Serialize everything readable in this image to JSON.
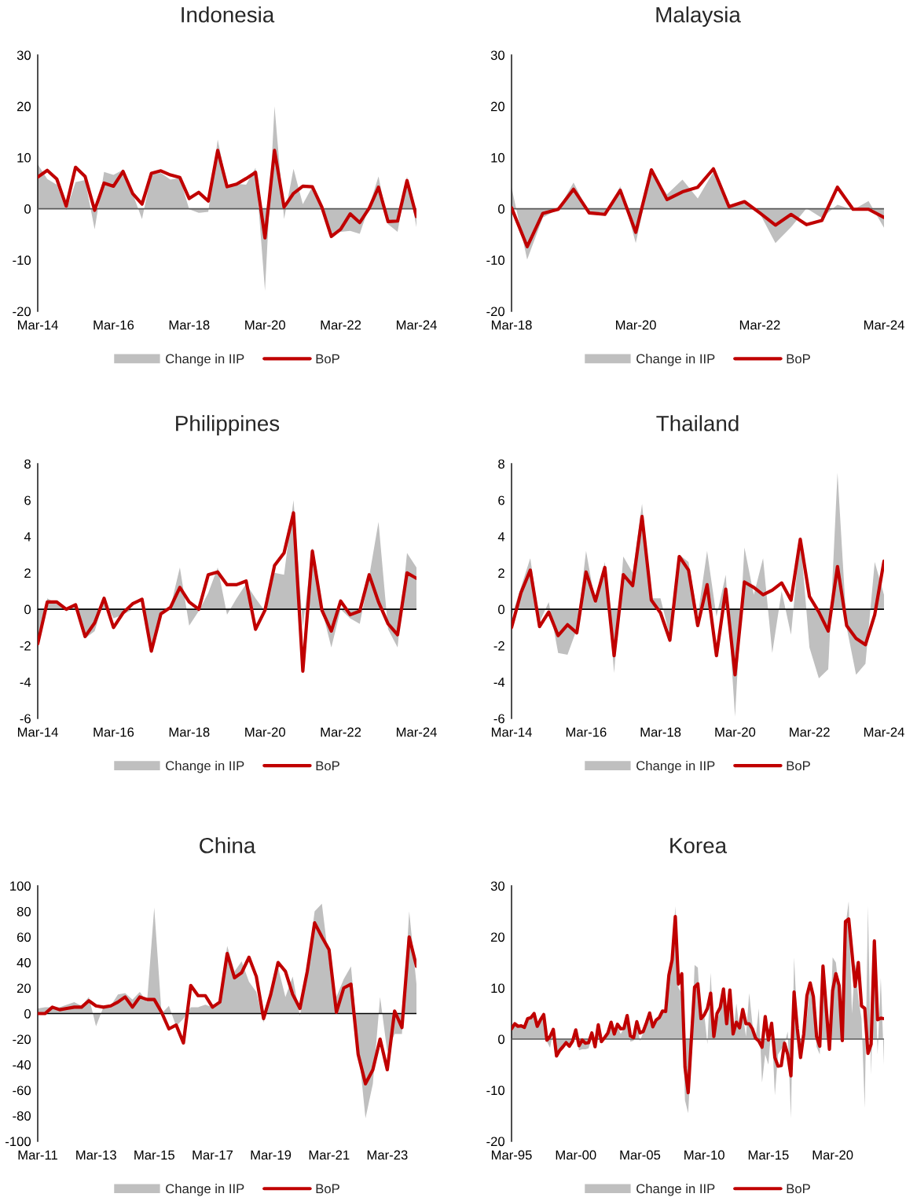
{
  "chart_data": [
    {
      "type": "area",
      "title": "Indonesia",
      "x": [
        "2014-03",
        "2014-06",
        "2014-09",
        "2014-12",
        "2015-03",
        "2015-06",
        "2015-09",
        "2015-12",
        "2016-03",
        "2016-06",
        "2016-09",
        "2016-12",
        "2017-03",
        "2017-06",
        "2017-09",
        "2017-12",
        "2018-03",
        "2018-06",
        "2018-09",
        "2018-12",
        "2019-03",
        "2019-06",
        "2019-09",
        "2019-12",
        "2020-03",
        "2020-06",
        "2020-09",
        "2020-12",
        "2021-03",
        "2021-06",
        "2021-09",
        "2021-12",
        "2022-03",
        "2022-06",
        "2022-09",
        "2022-12",
        "2023-03",
        "2023-06",
        "2023-09",
        "2023-12",
        "2024-03"
      ],
      "series": [
        {
          "name": "Change in IIP",
          "color": "#bfbfbf",
          "values": [
            8.7,
            5.8,
            4.7,
            -0.3,
            5.2,
            5.6,
            -4.0,
            7.2,
            6.6,
            7.6,
            3.0,
            -2.0,
            6.8,
            7.0,
            5.7,
            6.0,
            -0.1,
            -0.8,
            -0.6,
            13.5,
            4.5,
            4.9,
            4.7,
            8.0,
            -16.0,
            20.0,
            -2.0,
            7.8,
            0.9,
            4.3,
            0.3,
            -5.0,
            -4.5,
            -4.3,
            -4.9,
            0.5,
            6.3,
            -3.0,
            -4.5,
            6.3,
            -3.6
          ]
        },
        {
          "name": "BoP",
          "type": "line",
          "color": "#c00000",
          "values": [
            6.2,
            7.5,
            5.8,
            0.5,
            8.1,
            6.3,
            -0.3,
            5.0,
            4.4,
            7.3,
            3.0,
            0.9,
            6.9,
            7.4,
            6.6,
            6.1,
            2.0,
            3.2,
            1.5,
            11.4,
            4.3,
            4.8,
            5.9,
            7.1,
            -5.7,
            11.4,
            0.3,
            3.0,
            4.4,
            4.3,
            0.3,
            -5.4,
            -4.0,
            -1.0,
            -2.7,
            0.1,
            4.2,
            -2.5,
            -2.4,
            5.5,
            -1.5
          ]
        }
      ],
      "xlim": [
        "2014-03",
        "2024-03"
      ],
      "xticks": [
        {
          "value": "2014-03",
          "label": "Mar-14"
        },
        {
          "value": "2016-03",
          "label": "Mar-16"
        },
        {
          "value": "2018-03",
          "label": "Mar-18"
        },
        {
          "value": "2020-03",
          "label": "Mar-20"
        },
        {
          "value": "2022-03",
          "label": "Mar-22"
        },
        {
          "value": "2024-03",
          "label": "Mar-24"
        }
      ],
      "ylim": [
        -20,
        30
      ],
      "yticks": [
        -20,
        -10,
        0,
        10,
        20,
        30
      ],
      "ref_lines": [
        {
          "axis": "y",
          "value": 0,
          "color": "#595959"
        }
      ],
      "legend": "bottom",
      "grid": false
    },
    {
      "type": "area",
      "title": "Malaysia",
      "x": [
        "2018-03",
        "2018-06",
        "2018-09",
        "2018-12",
        "2019-03",
        "2019-06",
        "2019-09",
        "2019-12",
        "2020-03",
        "2020-06",
        "2020-09",
        "2020-12",
        "2021-03",
        "2021-06",
        "2021-09",
        "2021-12",
        "2022-03",
        "2022-06",
        "2022-09",
        "2022-12",
        "2023-03",
        "2023-06",
        "2023-09",
        "2023-12",
        "2024-03"
      ],
      "series": [
        {
          "name": "Change in IIP",
          "color": "#bfbfbf",
          "values": [
            4.2,
            -9.9,
            -1.7,
            -0.1,
            5.1,
            -0.9,
            -1.2,
            4.4,
            -6.7,
            7.2,
            2.8,
            5.7,
            2.0,
            7.2,
            0.4,
            1.3,
            -0.9,
            -6.7,
            -3.6,
            0.1,
            -1.8,
            0.8,
            -0.2,
            1.5,
            -3.7
          ]
        },
        {
          "name": "BoP",
          "type": "line",
          "color": "#c00000",
          "values": [
            0.2,
            -7.4,
            -0.9,
            -0.1,
            3.8,
            -0.8,
            -1.1,
            3.6,
            -4.6,
            7.6,
            1.8,
            3.3,
            4.2,
            7.8,
            0.4,
            1.4,
            -0.8,
            -3.2,
            -1.1,
            -3.1,
            -2.3,
            4.2,
            -0.1,
            -0.1,
            -1.7
          ]
        }
      ],
      "xlim": [
        "2018-03",
        "2024-03"
      ],
      "xticks": [
        {
          "value": "2018-03",
          "label": "Mar-18"
        },
        {
          "value": "2020-03",
          "label": "Mar-20"
        },
        {
          "value": "2022-03",
          "label": "Mar-22"
        },
        {
          "value": "2024-03",
          "label": "Mar-24"
        }
      ],
      "ylim": [
        -20,
        30
      ],
      "yticks": [
        -20,
        -10,
        0,
        10,
        20,
        30
      ],
      "ref_lines": [
        {
          "axis": "y",
          "value": 0,
          "color": "#595959"
        }
      ],
      "legend": "bottom",
      "grid": false
    },
    {
      "type": "area",
      "title": "Philippines",
      "x": [
        "2014-03",
        "2014-06",
        "2014-09",
        "2014-12",
        "2015-03",
        "2015-06",
        "2015-09",
        "2015-12",
        "2016-03",
        "2016-06",
        "2016-09",
        "2016-12",
        "2017-03",
        "2017-06",
        "2017-09",
        "2017-12",
        "2018-03",
        "2018-06",
        "2018-09",
        "2018-12",
        "2019-03",
        "2019-06",
        "2019-09",
        "2019-12",
        "2020-03",
        "2020-06",
        "2020-09",
        "2020-12",
        "2021-03",
        "2021-06",
        "2021-09",
        "2021-12",
        "2022-03",
        "2022-06",
        "2022-09",
        "2022-12",
        "2023-03",
        "2023-06",
        "2023-09",
        "2023-12",
        "2024-03"
      ],
      "series": [
        {
          "name": "Change in IIP",
          "color": "#bfbfbf",
          "values": [
            -2.2,
            0.6,
            0.3,
            -0.1,
            0.1,
            -1.6,
            -1.2,
            0.5,
            -0.5,
            -0.3,
            0.0,
            0.0,
            -2.2,
            -0.2,
            0.1,
            2.3,
            -0.9,
            -0.1,
            0.9,
            2.3,
            -0.3,
            0.6,
            1.4,
            0.6,
            -0.1,
            2.0,
            1.9,
            6.0,
            -1.0,
            3.4,
            0.0,
            -2.1,
            0.0,
            -0.5,
            -0.8,
            1.8,
            4.8,
            -1.1,
            -2.1,
            3.1,
            2.3
          ]
        },
        {
          "name": "BoP",
          "type": "line",
          "color": "#c00000",
          "values": [
            -1.9,
            0.4,
            0.4,
            0.0,
            0.25,
            -1.5,
            -0.75,
            0.6,
            -1.0,
            -0.2,
            0.3,
            0.55,
            -2.3,
            -0.25,
            0.1,
            1.2,
            0.4,
            0.0,
            1.9,
            2.05,
            1.35,
            1.35,
            1.55,
            -1.1,
            -0.05,
            2.4,
            3.1,
            5.3,
            -3.4,
            3.2,
            -0.05,
            -1.2,
            0.45,
            -0.3,
            -0.1,
            1.9,
            0.4,
            -0.8,
            -1.4,
            2.0,
            1.7
          ]
        }
      ],
      "xlim": [
        "2014-03",
        "2024-03"
      ],
      "xticks": [
        {
          "value": "2014-03",
          "label": "Mar-14"
        },
        {
          "value": "2016-03",
          "label": "Mar-16"
        },
        {
          "value": "2018-03",
          "label": "Mar-18"
        },
        {
          "value": "2020-03",
          "label": "Mar-20"
        },
        {
          "value": "2022-03",
          "label": "Mar-22"
        },
        {
          "value": "2024-03",
          "label": "Mar-24"
        }
      ],
      "ylim": [
        -6,
        8
      ],
      "yticks": [
        -6,
        -4,
        -2,
        0,
        2,
        4,
        6,
        8
      ],
      "ref_lines": [
        {
          "axis": "y",
          "value": 0,
          "color": "#000000"
        }
      ],
      "legend": "bottom",
      "grid": false
    },
    {
      "type": "area",
      "title": "Thailand",
      "x": [
        "2014-03",
        "2014-06",
        "2014-09",
        "2014-12",
        "2015-03",
        "2015-06",
        "2015-09",
        "2015-12",
        "2016-03",
        "2016-06",
        "2016-09",
        "2016-12",
        "2017-03",
        "2017-06",
        "2017-09",
        "2017-12",
        "2018-03",
        "2018-06",
        "2018-09",
        "2018-12",
        "2019-03",
        "2019-06",
        "2019-09",
        "2019-12",
        "2020-03",
        "2020-06",
        "2020-09",
        "2020-12",
        "2021-03",
        "2021-06",
        "2021-09",
        "2021-12",
        "2022-03",
        "2022-06",
        "2022-09",
        "2022-12",
        "2023-03",
        "2023-06",
        "2023-09",
        "2023-12",
        "2024-03"
      ],
      "series": [
        {
          "name": "Change in IIP",
          "color": "#bfbfbf",
          "values": [
            -0.4,
            1.2,
            2.8,
            -0.7,
            0.4,
            -2.4,
            -2.5,
            -1.1,
            3.2,
            0.3,
            2.6,
            -3.5,
            2.9,
            2.0,
            5.8,
            0.6,
            0.6,
            -1.5,
            3.0,
            2.6,
            -0.4,
            3.2,
            -0.4,
            1.9,
            -5.9,
            3.4,
            0.8,
            2.8,
            -2.4,
            1.0,
            -1.4,
            4.0,
            -2.1,
            -3.8,
            -3.3,
            7.5,
            -1.0,
            -3.6,
            -3.0,
            2.6,
            0.8
          ]
        },
        {
          "name": "BoP",
          "type": "line",
          "color": "#c00000",
          "values": [
            -1.0,
            0.9,
            2.15,
            -0.95,
            -0.15,
            -1.45,
            -0.85,
            -1.3,
            2.05,
            0.45,
            2.3,
            -2.55,
            1.9,
            1.3,
            5.1,
            0.5,
            -0.2,
            -1.7,
            2.9,
            2.15,
            -0.9,
            1.35,
            -2.55,
            1.1,
            -3.6,
            1.5,
            1.2,
            0.8,
            1.05,
            1.45,
            0.5,
            3.85,
            0.7,
            -0.15,
            -1.2,
            2.35,
            -0.9,
            -1.6,
            -1.95,
            -0.3,
            2.65
          ]
        }
      ],
      "xlim": [
        "2014-03",
        "2024-03"
      ],
      "xticks": [
        {
          "value": "2014-03",
          "label": "Mar-14"
        },
        {
          "value": "2016-03",
          "label": "Mar-16"
        },
        {
          "value": "2018-03",
          "label": "Mar-18"
        },
        {
          "value": "2020-03",
          "label": "Mar-20"
        },
        {
          "value": "2022-03",
          "label": "Mar-22"
        },
        {
          "value": "2024-03",
          "label": "Mar-24"
        }
      ],
      "ylim": [
        -6,
        8
      ],
      "yticks": [
        -6,
        -4,
        -2,
        0,
        2,
        4,
        6,
        8
      ],
      "ref_lines": [
        {
          "axis": "y",
          "value": 0,
          "color": "#000000"
        }
      ],
      "legend": "bottom",
      "grid": false
    },
    {
      "type": "area",
      "title": "China",
      "x": [
        "2011-03",
        "2011-06",
        "2011-09",
        "2011-12",
        "2012-03",
        "2012-06",
        "2012-09",
        "2012-12",
        "2013-03",
        "2013-06",
        "2013-09",
        "2013-12",
        "2014-03",
        "2014-06",
        "2014-09",
        "2014-12",
        "2015-03",
        "2015-06",
        "2015-09",
        "2015-12",
        "2016-03",
        "2016-06",
        "2016-09",
        "2016-12",
        "2017-03",
        "2017-06",
        "2017-09",
        "2017-12",
        "2018-03",
        "2018-06",
        "2018-09",
        "2018-12",
        "2019-03",
        "2019-06",
        "2019-09",
        "2019-12",
        "2020-03",
        "2020-06",
        "2020-09",
        "2020-12",
        "2021-03",
        "2021-06",
        "2021-09",
        "2021-12",
        "2022-03",
        "2022-06",
        "2022-09",
        "2022-12",
        "2023-03",
        "2023-06",
        "2023-09",
        "2023-12",
        "2024-03"
      ],
      "series": [
        {
          "name": "Change in IIP",
          "color": "#bfbfbf",
          "values": [
            4,
            5,
            5,
            5,
            7,
            9,
            6,
            13,
            -10,
            5,
            6,
            15,
            16,
            11,
            17,
            9,
            83,
            0,
            6,
            -10,
            -4,
            5,
            5,
            7,
            5,
            11,
            53,
            33,
            41,
            25,
            17,
            -7,
            15,
            36,
            13,
            29,
            -2,
            35,
            80,
            86,
            40,
            13,
            27,
            37,
            -25,
            -82,
            -55,
            13,
            -30,
            -16,
            -16,
            80,
            23
          ]
        },
        {
          "name": "BoP",
          "type": "line",
          "color": "#c00000",
          "values": [
            0,
            0,
            5,
            3,
            4,
            5,
            5,
            10,
            6,
            5,
            6,
            9,
            13,
            5,
            13,
            11,
            11,
            1,
            -12,
            -9,
            -23,
            22,
            14,
            14,
            5,
            9,
            47,
            28,
            32,
            44,
            29,
            -4,
            15,
            40,
            33,
            15,
            4,
            33,
            71,
            60,
            50,
            1,
            20,
            23,
            -32,
            -55,
            -44,
            -20,
            -44,
            2,
            -11,
            60,
            37
          ]
        }
      ],
      "xlim": [
        "2011-03",
        "2024-03"
      ],
      "xticks": [
        {
          "value": "2011-03",
          "label": "Mar-11"
        },
        {
          "value": "2013-03",
          "label": "Mar-13"
        },
        {
          "value": "2015-03",
          "label": "Mar-15"
        },
        {
          "value": "2017-03",
          "label": "Mar-17"
        },
        {
          "value": "2019-03",
          "label": "Mar-19"
        },
        {
          "value": "2021-03",
          "label": "Mar-21"
        },
        {
          "value": "2023-03",
          "label": "Mar-23"
        }
      ],
      "ylim": [
        -100,
        100
      ],
      "yticks": [
        -100,
        -80,
        -60,
        -40,
        -20,
        0,
        20,
        40,
        60,
        80,
        100
      ],
      "ref_lines": [
        {
          "axis": "y",
          "value": 0,
          "color": "#000000"
        }
      ],
      "legend": "bottom",
      "grid": false
    },
    {
      "type": "area",
      "title": "Korea",
      "x": [
        "1995-03",
        "1995-06",
        "1995-09",
        "1995-12",
        "1996-03",
        "1996-06",
        "1996-09",
        "1996-12",
        "1997-03",
        "1997-06",
        "1997-09",
        "1997-12",
        "1998-03",
        "1998-06",
        "1998-09",
        "1998-12",
        "1999-03",
        "1999-06",
        "1999-09",
        "1999-12",
        "2000-03",
        "2000-06",
        "2000-09",
        "2000-12",
        "2001-03",
        "2001-06",
        "2001-09",
        "2001-12",
        "2002-03",
        "2002-06",
        "2002-09",
        "2002-12",
        "2003-03",
        "2003-06",
        "2003-09",
        "2003-12",
        "2004-03",
        "2004-06",
        "2004-09",
        "2004-12",
        "2005-03",
        "2005-06",
        "2005-09",
        "2005-12",
        "2006-03",
        "2006-06",
        "2006-09",
        "2006-12",
        "2007-03",
        "2007-06",
        "2007-09",
        "2007-12",
        "2008-03",
        "2008-06",
        "2008-09",
        "2008-12",
        "2009-03",
        "2009-06",
        "2009-09",
        "2009-12",
        "2010-03",
        "2010-06",
        "2010-09",
        "2010-12",
        "2011-03",
        "2011-06",
        "2011-09",
        "2011-12",
        "2012-03",
        "2012-06",
        "2012-09",
        "2012-12",
        "2013-03",
        "2013-06",
        "2013-09",
        "2013-12",
        "2014-03",
        "2014-06",
        "2014-09",
        "2014-12",
        "2015-03",
        "2015-06",
        "2015-09",
        "2015-12",
        "2016-03",
        "2016-06",
        "2016-09",
        "2016-12",
        "2017-03",
        "2017-06",
        "2017-09",
        "2017-12",
        "2018-03",
        "2018-06",
        "2018-09",
        "2018-12",
        "2019-03",
        "2019-06",
        "2019-09",
        "2019-12",
        "2020-03",
        "2020-06",
        "2020-09",
        "2020-12",
        "2021-03",
        "2021-06",
        "2021-09",
        "2021-12",
        "2022-03",
        "2022-06",
        "2022-09",
        "2022-12",
        "2023-03",
        "2023-06",
        "2023-09",
        "2023-12",
        "2024-03"
      ],
      "series": [
        {
          "name": "Change in IIP",
          "color": "#bfbfbf",
          "values": [
            2,
            3,
            2.5,
            2.6,
            2.3,
            4,
            4.2,
            5,
            2.5,
            3.8,
            4.8,
            -0.5,
            -1.7,
            1.8,
            -3.0,
            -2.0,
            -1.2,
            -0.8,
            -1.5,
            -0.5,
            1.5,
            -2.2,
            -2.0,
            -2.0,
            -1.8,
            0.5,
            -1.4,
            2.5,
            0.2,
            0.3,
            1.0,
            3.0,
            1.4,
            2.5,
            1.0,
            2.2,
            4.2,
            -0.5,
            -0.3,
            3.0,
            -0.4,
            1.3,
            3.0,
            4.5,
            2.5,
            3.5,
            3.8,
            5.0,
            5.2,
            11.5,
            16.0,
            26.0,
            10.0,
            9.0,
            -12.0,
            -14.5,
            -3.0,
            14.5,
            14.0,
            3.5,
            5.0,
            -1.0,
            13.0,
            1.0,
            3.5,
            5.5,
            9.0,
            2.5,
            8.0,
            1.0,
            7.0,
            2.0,
            5.0,
            0.5,
            9.0,
            3.0,
            0.0,
            6.0,
            -8.5,
            -3.0,
            -5.0,
            3.0,
            -11.0,
            -3.0,
            -2.0,
            -1.0,
            1.5,
            -15.5,
            16.0,
            3.0,
            -3.5,
            2.0,
            4.0,
            11.0,
            6.0,
            -1.5,
            -3.0,
            13.5,
            4.5,
            -2.5,
            16.0,
            15.0,
            9.5,
            5.0,
            22.0,
            27.0,
            5.0,
            15.0,
            8.0,
            4.0,
            -13.5,
            26.0,
            -7.0,
            19.0,
            -3.0,
            12.0,
            -5.0
          ]
        },
        {
          "name": "BoP",
          "type": "line",
          "color": "#c00000",
          "values": [
            2,
            3,
            2.5,
            2.6,
            2.3,
            4,
            4.2,
            5,
            2.5,
            3.8,
            4.8,
            -0.2,
            0.5,
            1.9,
            -3.3,
            -2.2,
            -1.5,
            -0.7,
            -1.4,
            -0.4,
            1.8,
            -1.3,
            -0.2,
            -0.8,
            -0.7,
            1.2,
            -1.5,
            2.8,
            -0.5,
            0.3,
            1.2,
            3.3,
            1.0,
            2.9,
            2.0,
            2.1,
            4.6,
            0.6,
            0.3,
            3.4,
            1.2,
            1.5,
            3.2,
            5.1,
            2.4,
            3.7,
            4.2,
            5.5,
            5.4,
            12.5,
            15.5,
            24.0,
            10.8,
            12.8,
            -5.5,
            -10.5,
            0,
            10.2,
            10.8,
            4.0,
            4.7,
            6.0,
            9.0,
            0.5,
            5.0,
            6.2,
            9.8,
            3.0,
            9.6,
            1.0,
            3.3,
            2.2,
            5.8,
            3.0,
            3.0,
            2.0,
            0.2,
            -0.4,
            -1.6,
            4.4,
            -0.2,
            3.1,
            -3.6,
            -5.3,
            -5.2,
            -0.8,
            -3.0,
            -7.2,
            9.2,
            2.0,
            -3.6,
            1.0,
            8.5,
            11.0,
            8.3,
            0.5,
            -1.4,
            14.3,
            6.0,
            -2.0,
            9.5,
            12.8,
            10.5,
            -0.3,
            23.0,
            23.5,
            17.0,
            10.3,
            15.0,
            6.5,
            6.0,
            -2.8,
            -1.0,
            19.2,
            3.8,
            4.1,
            4.0
          ]
        }
      ],
      "xlim": [
        "1995-03",
        "2024-03"
      ],
      "xticks": [
        {
          "value": "1995-03",
          "label": "Mar-95"
        },
        {
          "value": "2000-03",
          "label": "Mar-00"
        },
        {
          "value": "2005-03",
          "label": "Mar-05"
        },
        {
          "value": "2010-03",
          "label": "Mar-10"
        },
        {
          "value": "2015-03",
          "label": "Mar-15"
        },
        {
          "value": "2020-03",
          "label": "Mar-20"
        }
      ],
      "ylim": [
        -20,
        30
      ],
      "yticks": [
        -20,
        -10,
        0,
        10,
        20,
        30
      ],
      "ref_lines": [
        {
          "axis": "y",
          "value": 0,
          "color": "#595959"
        }
      ],
      "legend": "bottom",
      "grid": false
    }
  ]
}
